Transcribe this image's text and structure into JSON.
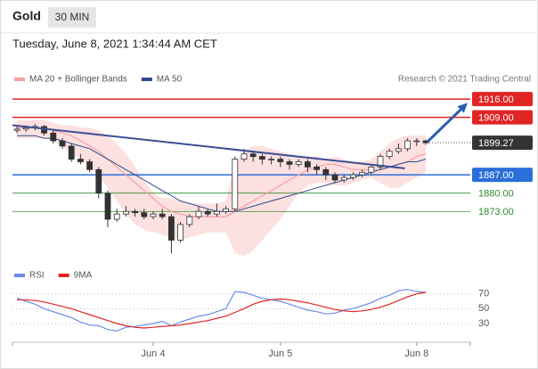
{
  "header": {
    "symbol": "Gold",
    "timeframe": "30 MIN",
    "datetime": "Tuesday, June 8, 2021 1:34:44 AM CET"
  },
  "chart_data": [
    {
      "type": "candlestick",
      "source": "Research © 2021 Trading Central",
      "ylim": [
        1855,
        1921.5
      ],
      "ohlc": [
        [
          1904,
          1906,
          1903,
          1904.5
        ],
        [
          1904.5,
          1906,
          1903.5,
          1905
        ],
        [
          1905,
          1906.5,
          1904,
          1905.5
        ],
        [
          1905.5,
          1906,
          1902,
          1903
        ],
        [
          1903,
          1904,
          1899,
          1900
        ],
        [
          1900,
          1901,
          1897,
          1898
        ],
        [
          1898,
          1899,
          1892,
          1893
        ],
        [
          1893,
          1895,
          1891,
          1892
        ],
        [
          1892,
          1893,
          1888,
          1889
        ],
        [
          1889,
          1890,
          1878,
          1880
        ],
        [
          1880,
          1881,
          1867,
          1870
        ],
        [
          1870,
          1874,
          1869,
          1872
        ],
        [
          1872,
          1875,
          1871,
          1873
        ],
        [
          1873,
          1874,
          1871,
          1872.5
        ],
        [
          1872.5,
          1874,
          1870,
          1871
        ],
        [
          1871,
          1873,
          1870,
          1872
        ],
        [
          1872,
          1874,
          1870,
          1871
        ],
        [
          1871,
          1872,
          1857,
          1862
        ],
        [
          1862,
          1869,
          1861,
          1868
        ],
        [
          1868,
          1872,
          1867,
          1871
        ],
        [
          1871,
          1875,
          1870,
          1873
        ],
        [
          1873,
          1874,
          1871,
          1872
        ],
        [
          1872,
          1876,
          1871,
          1873
        ],
        [
          1873,
          1875,
          1872,
          1874
        ],
        [
          1874,
          1894,
          1873,
          1893
        ],
        [
          1893,
          1897,
          1892,
          1895
        ],
        [
          1895,
          1896,
          1892,
          1894
        ],
        [
          1894,
          1895,
          1891,
          1893
        ],
        [
          1893,
          1894,
          1891,
          1893
        ],
        [
          1893,
          1894,
          1890,
          1892
        ],
        [
          1892,
          1893,
          1889,
          1891
        ],
        [
          1891,
          1893,
          1890,
          1892
        ],
        [
          1892,
          1893,
          1888,
          1890
        ],
        [
          1890,
          1891,
          1887,
          1889
        ],
        [
          1889,
          1890,
          1885,
          1887
        ],
        [
          1887,
          1888,
          1884,
          1885
        ],
        [
          1885,
          1887,
          1884,
          1886
        ],
        [
          1886,
          1888,
          1885,
          1887
        ],
        [
          1887,
          1889,
          1886,
          1888
        ],
        [
          1888,
          1891,
          1887,
          1890
        ],
        [
          1890,
          1895,
          1889,
          1894
        ],
        [
          1894,
          1897,
          1893,
          1896
        ],
        [
          1896,
          1899,
          1895,
          1897
        ],
        [
          1897,
          1901,
          1896,
          1900
        ],
        [
          1900,
          1901,
          1898,
          1900
        ],
        [
          1900,
          1900.5,
          1898.5,
          1899.27
        ]
      ],
      "series": [
        {
          "name": "MA 20 + Bollinger Bands",
          "color": "#f4a0a0",
          "values": [
            1905,
            1905,
            1905,
            1905,
            1904,
            1903,
            1902,
            1900,
            1898,
            1896,
            1893,
            1890,
            1887,
            1884,
            1881,
            1878,
            1875,
            1873,
            1872,
            1871,
            1871,
            1871,
            1871,
            1871,
            1873,
            1875,
            1877,
            1879,
            1881,
            1883,
            1885,
            1887,
            1889,
            1890,
            1891,
            1891,
            1890,
            1889,
            1889,
            1889,
            1889,
            1890,
            1891,
            1892,
            1894,
            1895
          ]
        },
        {
          "name": "MA 50",
          "color": "#2c4a8c",
          "values": [
            1902,
            1902,
            1902,
            1901,
            1901,
            1900,
            1899,
            1898,
            1897,
            1895,
            1893,
            1891,
            1889,
            1887,
            1885,
            1883,
            1881,
            1879,
            1877,
            1876,
            1875,
            1874,
            1873,
            1873,
            1873,
            1874,
            1875,
            1876,
            1877,
            1878,
            1879,
            1880,
            1881,
            1882,
            1883,
            1884,
            1885,
            1886,
            1887,
            1888,
            1889,
            1890,
            1891,
            1892,
            1892,
            1893
          ]
        }
      ],
      "bands": {
        "color": "#fde0e0",
        "upper": [
          1908,
          1908,
          1908,
          1908,
          1907,
          1906,
          1906,
          1905,
          1905,
          1904,
          1902,
          1899,
          1895,
          1890,
          1885,
          1880,
          1878,
          1878,
          1877,
          1876,
          1876,
          1876,
          1876,
          1877,
          1891,
          1896,
          1898,
          1898,
          1897,
          1896,
          1895,
          1894,
          1894,
          1894,
          1893,
          1894,
          1893,
          1892,
          1892,
          1893,
          1896,
          1899,
          1901,
          1902,
          1902,
          1902
        ],
        "lower": [
          1901,
          1901,
          1901,
          1901,
          1900,
          1898,
          1895,
          1893,
          1890,
          1887,
          1882,
          1877,
          1872,
          1868,
          1866,
          1865,
          1864,
          1863,
          1862,
          1863,
          1864,
          1865,
          1865,
          1865,
          1857,
          1856,
          1858,
          1862,
          1866,
          1870,
          1875,
          1880,
          1883,
          1884,
          1884,
          1883,
          1883,
          1884,
          1885,
          1886,
          1884,
          1882,
          1882,
          1884,
          1886,
          1888
        ]
      },
      "trendline": {
        "color": "#3a4f95",
        "x": [
          -0.5,
          42.7
        ],
        "y": [
          1906,
          1889.5
        ]
      },
      "arrow": {
        "color": "#2a5db0",
        "x": [
          45.2,
          49.6
        ],
        "y": [
          1899.7,
          1914.5
        ]
      },
      "levels": [
        {
          "value": 1916,
          "label": "1916.00",
          "color": "#e02424",
          "box": true
        },
        {
          "value": 1909,
          "label": "1909.00",
          "color": "#e02424",
          "box": true
        },
        {
          "value": 1887,
          "label": "1887.00",
          "color": "#2a6fdb",
          "box": true
        },
        {
          "value": 1880,
          "label": "1880.00",
          "color": "#2e8b2e",
          "box": false
        },
        {
          "value": 1873,
          "label": "1873.00",
          "color": "#2e8b2e",
          "box": false
        }
      ],
      "last_price": {
        "value": 1899.27,
        "label": "1899.27",
        "color": "#333333"
      }
    },
    {
      "type": "line",
      "ylim": [
        6,
        84
      ],
      "yticks": [
        70,
        50,
        30
      ],
      "categories": [
        null,
        null,
        null,
        null,
        null,
        null,
        null,
        null,
        null,
        null,
        null,
        null,
        null,
        null,
        null,
        "Jun 4",
        null,
        null,
        null,
        null,
        null,
        null,
        null,
        null,
        null,
        null,
        null,
        null,
        null,
        "Jun 5",
        null,
        null,
        null,
        null,
        null,
        null,
        null,
        null,
        null,
        null,
        null,
        null,
        null,
        null,
        "Jun 8",
        null
      ],
      "series": [
        {
          "name": "RSI",
          "color": "#6b8ce8",
          "values": [
            64,
            60,
            56,
            50,
            46,
            42,
            38,
            32,
            28,
            27,
            22,
            20,
            25,
            26,
            28,
            30,
            33,
            27,
            32,
            36,
            40,
            42,
            46,
            50,
            73,
            72,
            68,
            64,
            62,
            60,
            56,
            52,
            48,
            46,
            43,
            44,
            48,
            50,
            54,
            58,
            64,
            68,
            74,
            76,
            73,
            72
          ]
        },
        {
          "name": "9MA",
          "color": "#e02424",
          "values": [
            62,
            62,
            61,
            59,
            56,
            53,
            50,
            46,
            42,
            38,
            34,
            30,
            27,
            25,
            24,
            25,
            26,
            27,
            28,
            30,
            32,
            34,
            37,
            40,
            45,
            50,
            56,
            60,
            62,
            63,
            62,
            60,
            58,
            55,
            52,
            49,
            47,
            46,
            47,
            49,
            52,
            56,
            61,
            66,
            70,
            72
          ]
        }
      ]
    }
  ]
}
